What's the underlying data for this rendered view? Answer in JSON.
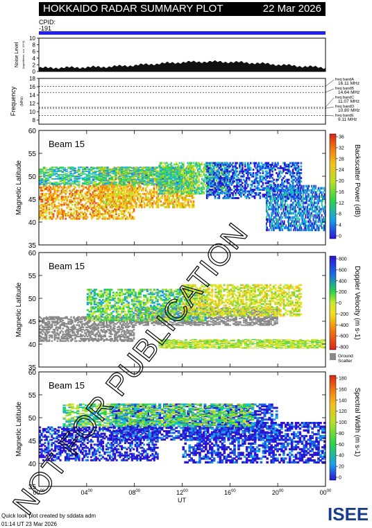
{
  "header": {
    "title": "HOKKAIDO RADAR SUMMARY PLOT",
    "date": "22 Mar 2026"
  },
  "cpid": {
    "label": "CPID:",
    "value": "-191"
  },
  "noise_panel": {
    "ylabel": "Noise Level",
    "ysub": "(logarithmic, a.u. 10^3)",
    "yticks": [
      "0",
      "2",
      "4",
      "6",
      "8",
      "10"
    ]
  },
  "freq_panel": {
    "ylabel": "Frequency",
    "yunit": "(MHz)",
    "yticks": [
      "8",
      "10",
      "12",
      "14",
      "16",
      "18"
    ],
    "bands": [
      {
        "name": "freq bandA",
        "value": "16.11 MHz"
      },
      {
        "name": "freq bandB",
        "value": "14.64 MHz"
      },
      {
        "name": "freq bandC",
        "value": "11.07 MHz"
      },
      {
        "name": "freq bandD",
        "value": "10.80 MHz"
      },
      {
        "name": "freq bandE",
        "value": "9.11 MHz"
      }
    ]
  },
  "panels": [
    {
      "beam": "Beam 15",
      "ylabel": "Magnetic Latitude",
      "cb_label": "Backscatter Power (dB)",
      "cb_ticks": [
        "0",
        "4",
        "8",
        "12",
        "16",
        "20",
        "24",
        "28",
        "32",
        "36"
      ],
      "extra": ""
    },
    {
      "beam": "Beam 15",
      "ylabel": "Magnetic Latitude",
      "cb_label": "Doppler Velocity (m s-1)",
      "cb_ticks": [
        "-800",
        "-600",
        "-400",
        "-200",
        "0",
        "200",
        "400",
        "600",
        "800"
      ],
      "extra": "Ground Scatter"
    },
    {
      "beam": "Beam 15",
      "ylabel": "Magnetic Latitude",
      "cb_label": "Spectral Width (m s-1)",
      "cb_ticks": [
        "0",
        "20",
        "40",
        "60",
        "80",
        "100",
        "120",
        "140",
        "160",
        "180"
      ],
      "extra": ""
    }
  ],
  "lat_ticks": [
    "35",
    "40",
    "45",
    "50",
    "55",
    "60"
  ],
  "xaxis": {
    "ticks": [
      "00",
      "04",
      "08",
      "12",
      "16",
      "20",
      "00"
    ],
    "tick_sup": "00",
    "label": "UT"
  },
  "watermark": "NOT FOR PUBLICATION",
  "footer": {
    "line1": "Quick look plot created by sddata adm",
    "line2": "01:14 UT 23 Mar 2026"
  },
  "logo_text": "ISEE",
  "colors": {
    "cpid_bar": "#2222ee",
    "ground_scatter": "#888888",
    "logo_teal": "#1a9a8a",
    "logo_blue": "#1a3c8c",
    "logo_green": "#6ab42c"
  },
  "chart_data": [
    {
      "type": "line",
      "title": "Noise Level",
      "x": [
        0,
        2,
        4,
        6,
        8,
        10,
        12,
        14,
        16,
        18,
        20,
        22,
        24
      ],
      "y": [
        1.0,
        1.1,
        1.2,
        1.4,
        1.8,
        2.3,
        2.7,
        2.9,
        2.8,
        2.5,
        2.0,
        1.5,
        1.1
      ],
      "xlabel": "UT",
      "ylabel": "Noise Level",
      "ylim": [
        0,
        10
      ]
    },
    {
      "type": "line",
      "title": "Frequency",
      "x": [
        0,
        24
      ],
      "series": [
        {
          "name": "freq bandA",
          "values": [
            16.11,
            16.11
          ]
        },
        {
          "name": "freq bandB",
          "values": [
            14.64,
            14.64
          ]
        },
        {
          "name": "freq bandC",
          "values": [
            11.07,
            11.07
          ]
        },
        {
          "name": "freq bandD",
          "values": [
            10.8,
            10.8
          ]
        },
        {
          "name": "freq bandE",
          "values": [
            9.11,
            9.11
          ]
        }
      ],
      "ylabel": "Frequency",
      "ylim": [
        7,
        18
      ]
    },
    {
      "type": "heatmap",
      "title": "Beam 15 Backscatter Power",
      "xlabel": "UT",
      "ylabel": "Magnetic Latitude",
      "xlim": [
        0,
        24
      ],
      "ylim": [
        35,
        60
      ],
      "clim": [
        0,
        36
      ],
      "regions": [
        {
          "t0": 0,
          "t1": 8,
          "lat0": 40.5,
          "lat1": 48,
          "value": 26
        },
        {
          "t0": 5,
          "t1": 13,
          "lat0": 43,
          "lat1": 52,
          "value": 24
        },
        {
          "t0": 10,
          "t1": 16,
          "lat0": 46,
          "lat1": 53,
          "value": 14
        },
        {
          "t0": 14,
          "t1": 22,
          "lat0": 45,
          "lat1": 53,
          "value": 4
        },
        {
          "t0": 19,
          "t1": 24,
          "lat0": 38,
          "lat1": 48,
          "value": 6
        },
        {
          "t0": 0,
          "t1": 12,
          "lat0": 48,
          "lat1": 52,
          "value": 12
        }
      ]
    },
    {
      "type": "heatmap",
      "title": "Beam 15 Doppler Velocity",
      "xlabel": "UT",
      "ylabel": "Magnetic Latitude",
      "xlim": [
        0,
        24
      ],
      "ylim": [
        35,
        60
      ],
      "clim": [
        -800,
        800
      ],
      "regions": [
        {
          "t0": 0,
          "t1": 8,
          "lat0": 40.5,
          "lat1": 46,
          "value": "ground"
        },
        {
          "t0": 8,
          "t1": 20,
          "lat0": 44,
          "lat1": 48,
          "value": "ground"
        },
        {
          "t0": 4,
          "t1": 14,
          "lat0": 45,
          "lat1": 52,
          "value": 150
        },
        {
          "t0": 12,
          "t1": 22,
          "lat0": 46,
          "lat1": 53,
          "value": -150
        },
        {
          "t0": 10,
          "t1": 24,
          "lat0": 39,
          "lat1": 41,
          "value": -50
        }
      ]
    },
    {
      "type": "heatmap",
      "title": "Beam 15 Spectral Width",
      "xlabel": "UT",
      "ylabel": "Magnetic Latitude",
      "xlim": [
        0,
        24
      ],
      "ylim": [
        35,
        60
      ],
      "clim": [
        0,
        180
      ],
      "regions": [
        {
          "t0": 0,
          "t1": 10,
          "lat0": 40.5,
          "lat1": 48,
          "value": 5
        },
        {
          "t0": 6,
          "t1": 20,
          "lat0": 45,
          "lat1": 53,
          "value": 10
        },
        {
          "t0": 12,
          "t1": 24,
          "lat0": 40,
          "lat1": 49,
          "value": 8
        },
        {
          "t0": 2,
          "t1": 18,
          "lat0": 48,
          "lat1": 53,
          "value": 70
        }
      ]
    }
  ]
}
